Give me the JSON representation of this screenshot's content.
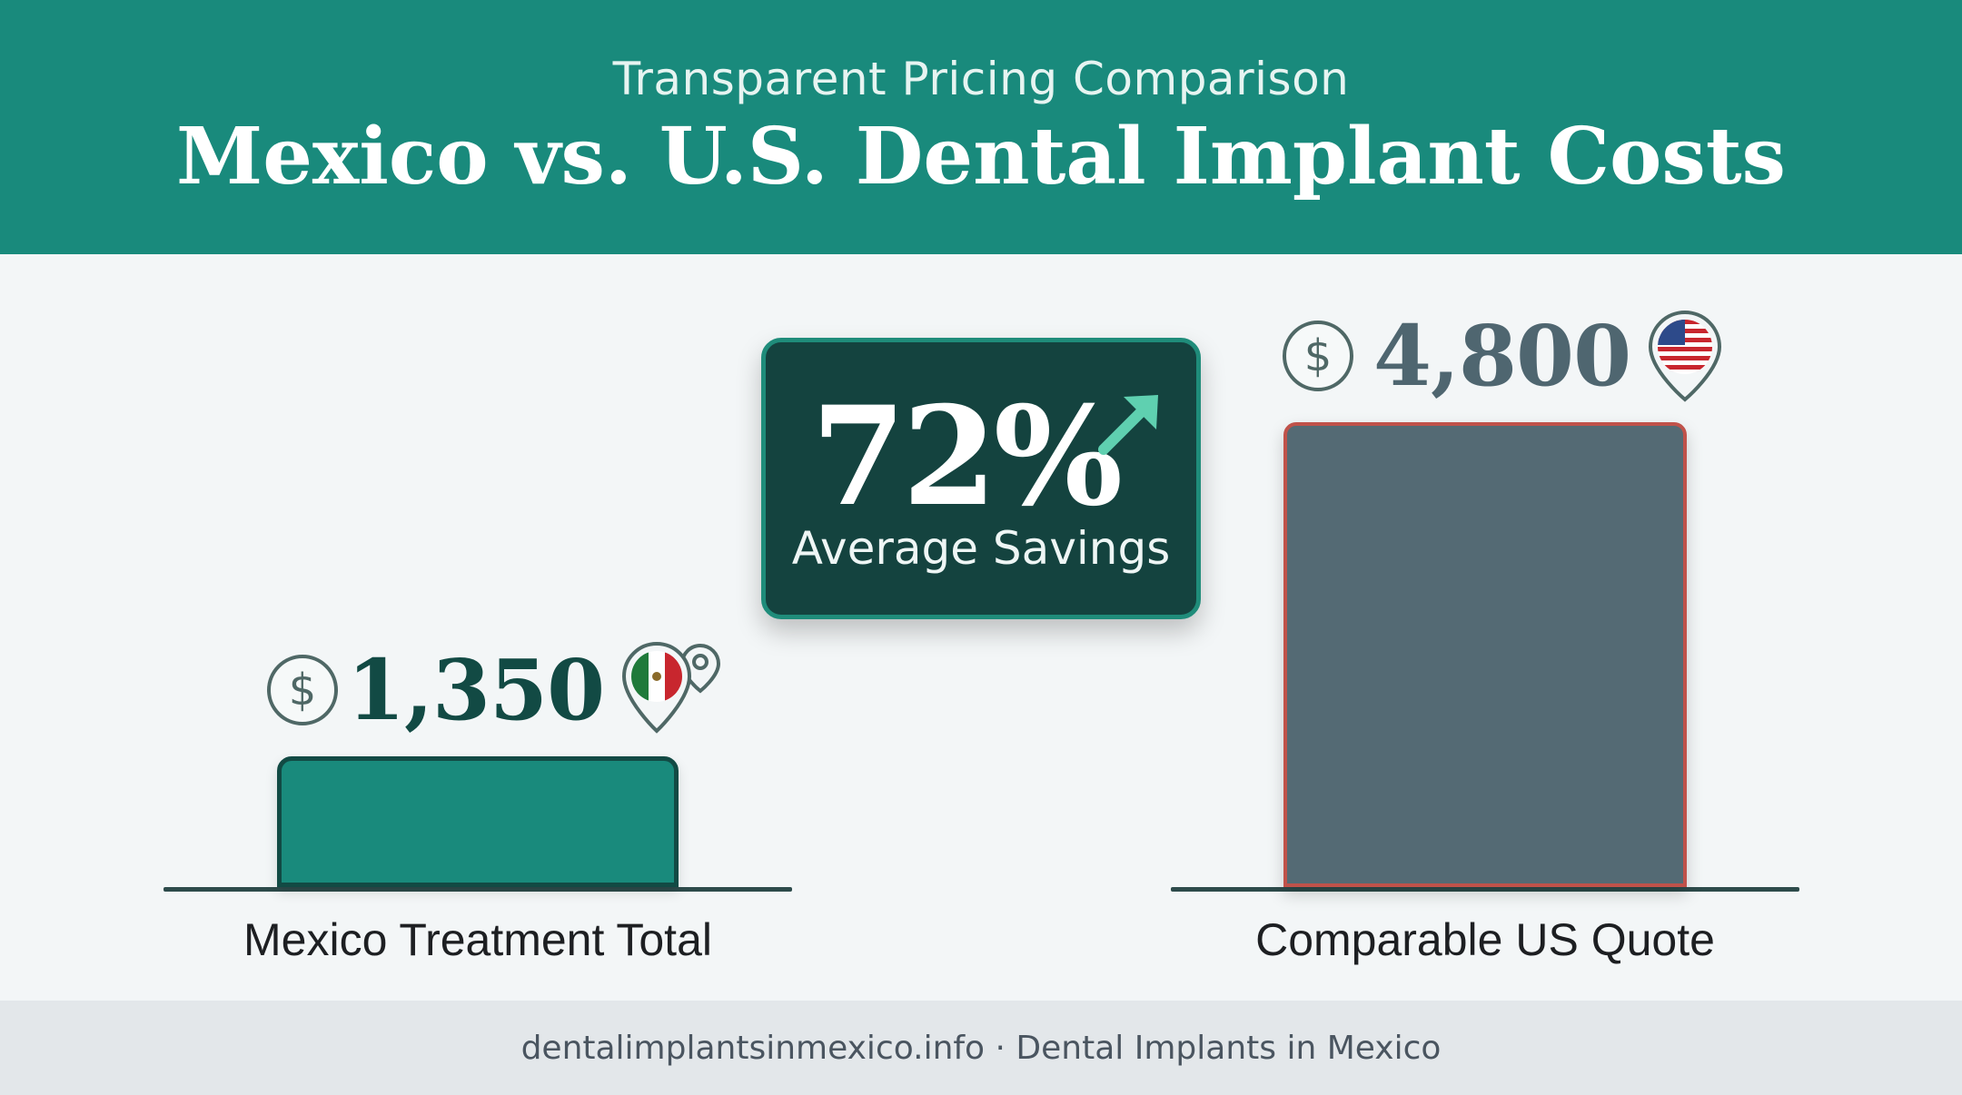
{
  "header": {
    "subtitle": "Transparent Pricing Comparison",
    "title": "Mexico vs. U.S. Dental Implant Costs"
  },
  "chart_data": {
    "type": "bar",
    "title": "Mexico vs. U.S. Dental Implant Costs",
    "subtitle": "Transparent Pricing Comparison",
    "categories": [
      "Mexico Treatment Total",
      "Comparable US Quote"
    ],
    "values": [
      1350,
      4800
    ],
    "value_labels": [
      "1,350",
      "4,800"
    ],
    "currency_symbol": "$",
    "colors": [
      "#198a7c",
      "#546a74"
    ],
    "annotation": {
      "value": "72%",
      "label": "Average Savings"
    },
    "grid": false
  },
  "icons": {
    "currency": "dollar-circle-icon",
    "mexico": "mexico-flag-pin-icon",
    "us": "us-flag-pin-icon",
    "trend": "arrow-up-right-icon"
  },
  "footer": {
    "text": "dentalimplantsinmexico.info · Dental Implants in Mexico"
  }
}
